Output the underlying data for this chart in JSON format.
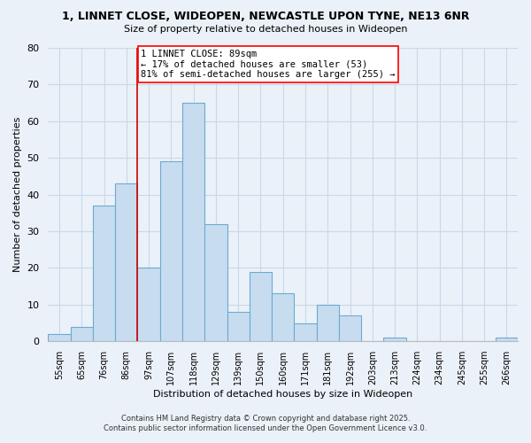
{
  "title1": "1, LINNET CLOSE, WIDEOPEN, NEWCASTLE UPON TYNE, NE13 6NR",
  "title2": "Size of property relative to detached houses in Wideopen",
  "xlabel": "Distribution of detached houses by size in Wideopen",
  "ylabel": "Number of detached properties",
  "bar_labels": [
    "55sqm",
    "65sqm",
    "76sqm",
    "86sqm",
    "97sqm",
    "107sqm",
    "118sqm",
    "129sqm",
    "139sqm",
    "150sqm",
    "160sqm",
    "171sqm",
    "181sqm",
    "192sqm",
    "203sqm",
    "213sqm",
    "224sqm",
    "234sqm",
    "245sqm",
    "255sqm",
    "266sqm"
  ],
  "bar_values": [
    2,
    4,
    37,
    43,
    20,
    49,
    65,
    32,
    8,
    19,
    13,
    5,
    10,
    7,
    0,
    1,
    0,
    0,
    0,
    0,
    1
  ],
  "bar_color": "#C8DCF0",
  "bar_edge_color": "#6AABD2",
  "ylim": [
    0,
    80
  ],
  "yticks": [
    0,
    10,
    20,
    30,
    40,
    50,
    60,
    70,
    80
  ],
  "grid_color": "#C8D8E8",
  "background_color": "#EBF1F8",
  "annotation_title": "1 LINNET CLOSE: 89sqm",
  "annotation_line1": "← 17% of detached houses are smaller (53)",
  "annotation_line2": "81% of semi-detached houses are larger (255) →",
  "vline_index": 3,
  "vline_color": "#CC0000",
  "footnote1": "Contains HM Land Registry data © Crown copyright and database right 2025.",
  "footnote2": "Contains public sector information licensed under the Open Government Licence v3.0."
}
